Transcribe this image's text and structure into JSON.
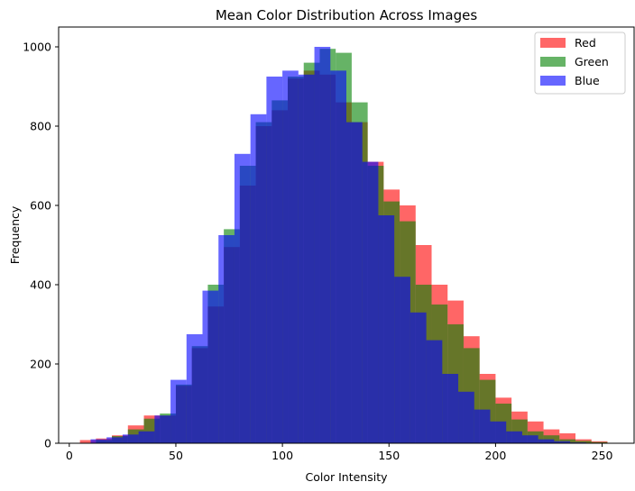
{
  "chart_data": {
    "type": "bar",
    "title": "Mean Color Distribution Across Images",
    "xlabel": "Color Intensity",
    "ylabel": "Frequency",
    "xlim": [
      -5,
      265
    ],
    "ylim": [
      0,
      1050
    ],
    "xticks": [
      0,
      50,
      100,
      150,
      200,
      250
    ],
    "yticks": [
      0,
      200,
      400,
      600,
      800,
      1000
    ],
    "grid": false,
    "legend_position": "top-right",
    "bin_width": 7.5,
    "series": [
      {
        "name": "Red",
        "color": "#ff0000",
        "opacity": 0.6,
        "bin_starts": [
          5,
          12.5,
          20,
          27.5,
          35,
          42.5,
          50,
          57.5,
          65,
          72.5,
          80,
          87.5,
          95,
          102.5,
          110,
          117.5,
          125,
          132.5,
          140,
          147.5,
          155,
          162.5,
          170,
          177.5,
          185,
          192.5,
          200,
          207.5,
          215,
          222.5,
          230,
          237.5,
          245
        ],
        "values": [
          8,
          12,
          20,
          45,
          70,
          70,
          145,
          240,
          345,
          495,
          650,
          800,
          840,
          920,
          940,
          930,
          860,
          810,
          710,
          640,
          600,
          500,
          400,
          360,
          270,
          175,
          115,
          80,
          55,
          35,
          25,
          10,
          5
        ]
      },
      {
        "name": "Green",
        "color": "#008000",
        "opacity": 0.6,
        "bin_starts": [
          12.5,
          20,
          27.5,
          35,
          42.5,
          50,
          57.5,
          65,
          72.5,
          80,
          87.5,
          95,
          102.5,
          110,
          117.5,
          125,
          132.5,
          140,
          147.5,
          155,
          162.5,
          170,
          177.5,
          185,
          192.5,
          200,
          207.5,
          215,
          222.5,
          230,
          237.5,
          245
        ],
        "values": [
          8,
          18,
          35,
          62,
          75,
          148,
          245,
          400,
          540,
          700,
          810,
          865,
          925,
          960,
          995,
          985,
          860,
          700,
          610,
          560,
          400,
          350,
          300,
          240,
          160,
          100,
          60,
          30,
          20,
          10,
          6,
          3
        ]
      },
      {
        "name": "Blue",
        "color": "#0000ff",
        "opacity": 0.6,
        "bin_starts": [
          10,
          17.5,
          25,
          32.5,
          40,
          47.5,
          55,
          62.5,
          70,
          77.5,
          85,
          92.5,
          100,
          107.5,
          115,
          122.5,
          130,
          137.5,
          145,
          152.5,
          160,
          167.5,
          175,
          182.5,
          190,
          197.5,
          205,
          212.5,
          220,
          227.5,
          235
        ],
        "values": [
          10,
          15,
          22,
          30,
          70,
          160,
          275,
          385,
          525,
          730,
          830,
          925,
          940,
          930,
          1000,
          940,
          810,
          710,
          575,
          420,
          330,
          260,
          175,
          130,
          85,
          55,
          30,
          20,
          10,
          5,
          2
        ]
      }
    ]
  }
}
